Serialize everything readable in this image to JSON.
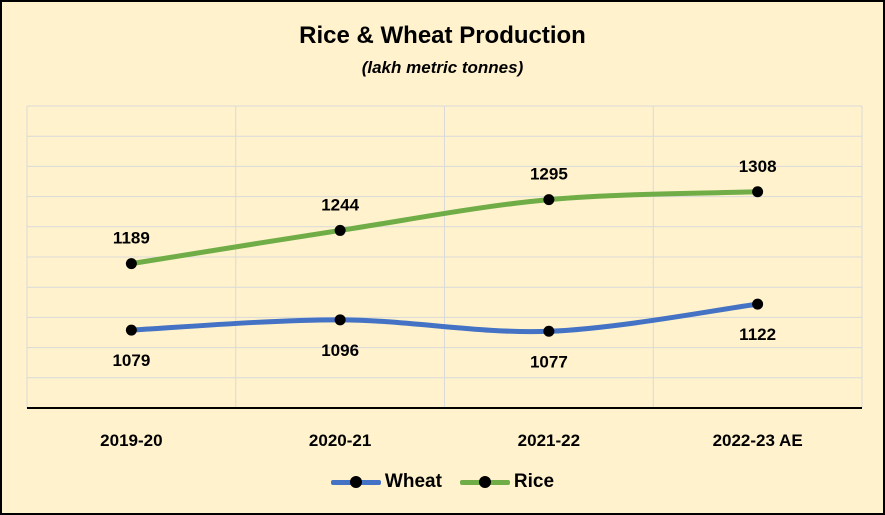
{
  "chart_data": {
    "type": "line",
    "title": "Rice & Wheat Production",
    "subtitle": "(lakh metric tonnes)",
    "categories": [
      "2019-20",
      "2020-21",
      "2021-22",
      "2022-23 AE"
    ],
    "series": [
      {
        "name": "Wheat",
        "values": [
          1079,
          1096,
          1077,
          1122
        ],
        "color": "#4472c4",
        "label_position": "below"
      },
      {
        "name": "Rice",
        "values": [
          1189,
          1244,
          1295,
          1308
        ],
        "color": "#70ad47",
        "label_position": "above"
      }
    ],
    "ylim": [
      950,
      1450
    ],
    "grid": true,
    "legend_position": "bottom",
    "marker_color": "#000000"
  }
}
